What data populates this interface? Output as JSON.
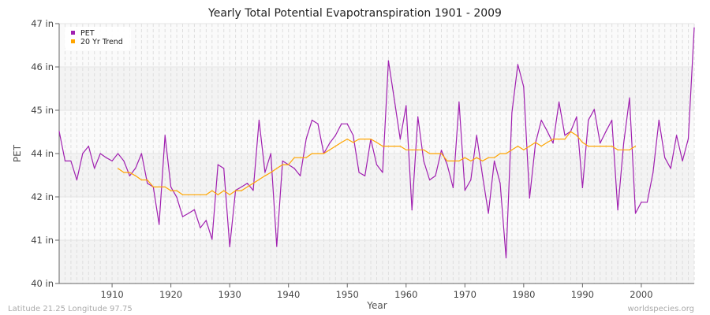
{
  "chart_data": {
    "type": "line",
    "title": "Yearly Total Potential Evapotranspiration 1901 - 2009",
    "xlabel": "Year",
    "ylabel": "PET",
    "ylim": [
      40,
      47
    ],
    "xlim": [
      1901,
      2009
    ],
    "y_ticks": [
      {
        "value": 40,
        "label": "40 in"
      },
      {
        "value": 41.1667,
        "label": "41 in"
      },
      {
        "value": 42.3333,
        "label": "42 in"
      },
      {
        "value": 43.5,
        "label": "44 in"
      },
      {
        "value": 44.6667,
        "label": "45 in"
      },
      {
        "value": 45.8333,
        "label": "46 in"
      },
      {
        "value": 47,
        "label": "47 in"
      }
    ],
    "x_ticks": [
      1910,
      1920,
      1930,
      1940,
      1950,
      1960,
      1970,
      1980,
      1990,
      2000
    ],
    "grid": true,
    "legend_position": "top-left",
    "series": [
      {
        "name": "PET",
        "color": "#a020b0",
        "x_start": 1901,
        "values": [
          44.1,
          43.3,
          43.3,
          42.79,
          43.5,
          43.7,
          43.1,
          43.5,
          43.39,
          43.3,
          43.5,
          43.3,
          42.9,
          43.11,
          43.5,
          42.7,
          42.6,
          41.59,
          43.99,
          42.6,
          42.32,
          41.8,
          41.89,
          41.99,
          41.5,
          41.7,
          41.19,
          43.2,
          43.1,
          40.99,
          42.51,
          42.6,
          42.7,
          42.51,
          44.4,
          42.99,
          43.5,
          41.0,
          43.3,
          43.2,
          43.1,
          42.9,
          43.89,
          44.4,
          44.3,
          43.5,
          43.78,
          43.99,
          44.3,
          44.3,
          43.99,
          42.99,
          42.9,
          43.89,
          43.2,
          42.99,
          46.0,
          44.95,
          43.89,
          44.79,
          41.98,
          44.49,
          43.3,
          42.79,
          42.9,
          43.59,
          43.2,
          42.58,
          44.89,
          42.51,
          42.79,
          43.99,
          42.9,
          41.89,
          43.3,
          42.7,
          40.69,
          44.6,
          45.9,
          45.3,
          42.3,
          43.78,
          44.4,
          44.1,
          43.78,
          44.89,
          43.99,
          44.1,
          44.49,
          42.58,
          44.4,
          44.69,
          43.78,
          44.1,
          44.4,
          41.98,
          43.78,
          45.0,
          41.89,
          42.19,
          42.19,
          42.99,
          44.4,
          43.39,
          43.1,
          43.99,
          43.3,
          43.9,
          46.89
        ]
      },
      {
        "name": "20 Yr Trend",
        "color": "#ffa500",
        "x_start": 1911,
        "values": [
          43.1,
          42.99,
          42.99,
          42.9,
          42.79,
          42.79,
          42.6,
          42.6,
          42.6,
          42.5,
          42.5,
          42.39,
          42.39,
          42.39,
          42.39,
          42.39,
          42.5,
          42.39,
          42.5,
          42.39,
          42.5,
          42.5,
          42.6,
          42.7,
          42.8,
          42.9,
          42.99,
          43.1,
          43.2,
          43.2,
          43.39,
          43.39,
          43.39,
          43.5,
          43.5,
          43.5,
          43.6,
          43.7,
          43.8,
          43.89,
          43.8,
          43.89,
          43.89,
          43.89,
          43.8,
          43.7,
          43.7,
          43.7,
          43.7,
          43.6,
          43.6,
          43.6,
          43.6,
          43.5,
          43.5,
          43.5,
          43.3,
          43.3,
          43.3,
          43.39,
          43.3,
          43.39,
          43.3,
          43.39,
          43.39,
          43.5,
          43.5,
          43.6,
          43.7,
          43.6,
          43.7,
          43.8,
          43.7,
          43.8,
          43.89,
          43.89,
          43.89,
          44.09,
          43.99,
          43.8,
          43.7,
          43.7,
          43.7,
          43.7,
          43.7,
          43.6,
          43.6,
          43.6,
          43.7
        ]
      }
    ]
  },
  "footer": {
    "location": "Latitude 21.25 Longitude 97.75",
    "source": "worldspecies.org"
  }
}
